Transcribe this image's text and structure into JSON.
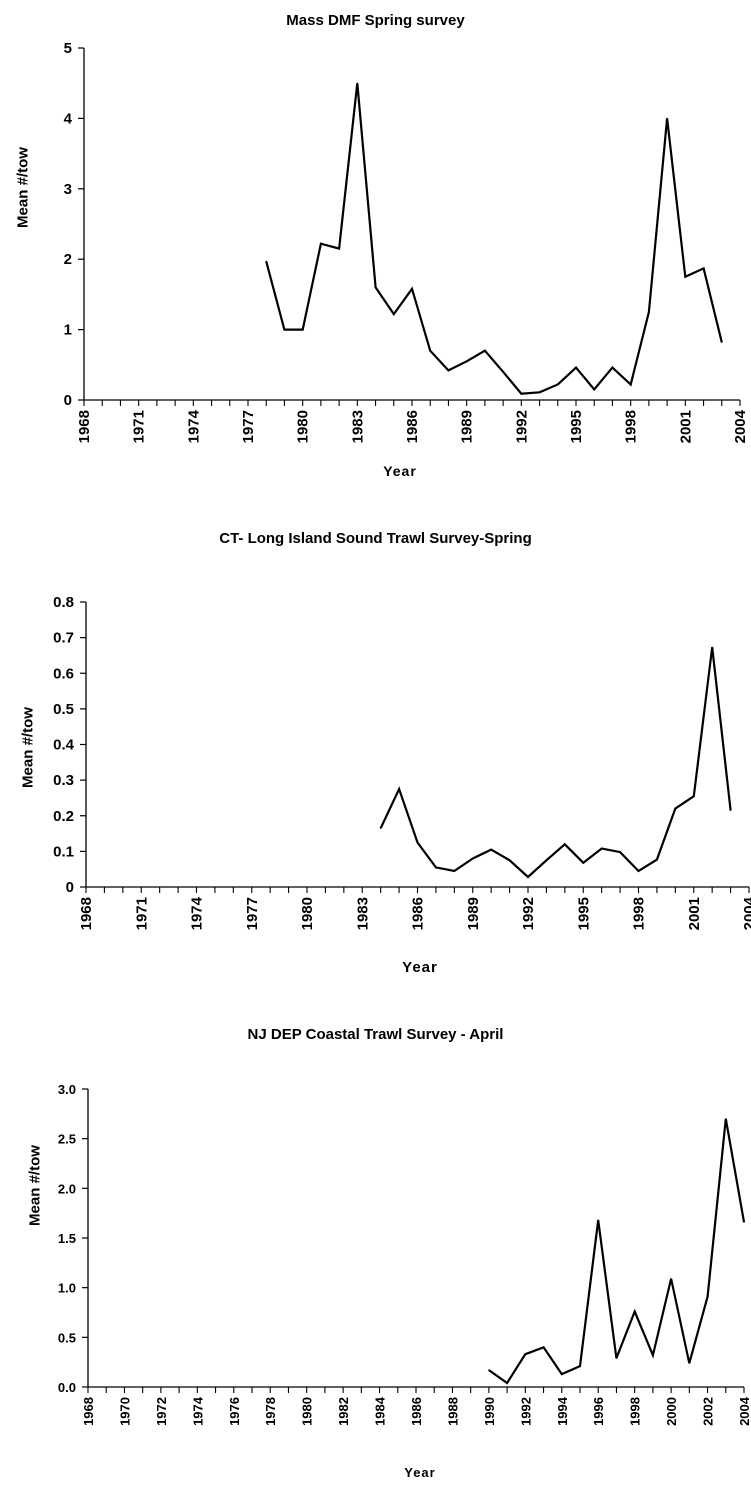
{
  "chart_data": [
    {
      "type": "line",
      "title": "Mass DMF Spring survey",
      "xlabel": "Year",
      "ylabel": "Mean #/tow",
      "ylim": [
        0,
        5
      ],
      "yticks": [
        "0",
        "1",
        "2",
        "3",
        "4",
        "5"
      ],
      "xlim": [
        1968,
        2004
      ],
      "xticks": [
        "1968",
        "1971",
        "1974",
        "1977",
        "1980",
        "1983",
        "1986",
        "1989",
        "1992",
        "1995",
        "1998",
        "2001",
        "2004"
      ],
      "grid": false,
      "legend": "none",
      "series": [
        {
          "x": [
            1978,
            1979,
            1980,
            1981,
            1982,
            1983,
            1984,
            1985,
            1986,
            1987,
            1988,
            1989,
            1990,
            1991,
            1992,
            1993,
            1994,
            1995,
            1996,
            1997,
            1998,
            1999,
            2000,
            2001,
            2002,
            2003
          ],
          "values": [
            1.97,
            1.0,
            1.0,
            2.22,
            2.15,
            4.5,
            1.6,
            1.22,
            1.58,
            0.7,
            0.42,
            0.55,
            0.7,
            0.4,
            0.09,
            0.11,
            0.22,
            0.46,
            0.15,
            0.46,
            0.22,
            1.25,
            4.0,
            1.75,
            1.87,
            0.82
          ]
        }
      ]
    },
    {
      "type": "line",
      "title": "CT- Long Island Sound Trawl Survey-Spring",
      "xlabel": "Year",
      "ylabel": "Mean #/tow",
      "ylim": [
        0,
        0.8
      ],
      "yticks": [
        "0",
        "0.1",
        "0.2",
        "0.3",
        "0.4",
        "0.5",
        "0.6",
        "0.7",
        "0.8"
      ],
      "xlim": [
        1968,
        2004
      ],
      "xticks": [
        "1968",
        "1971",
        "1974",
        "1977",
        "1980",
        "1983",
        "1986",
        "1989",
        "1992",
        "1995",
        "1998",
        "2001",
        "2004"
      ],
      "grid": false,
      "legend": "none",
      "series": [
        {
          "x": [
            1984,
            1985,
            1986,
            1987,
            1988,
            1989,
            1990,
            1991,
            1992,
            1993,
            1994,
            1995,
            1996,
            1997,
            1998,
            1999,
            2000,
            2001,
            2002,
            2003
          ],
          "values": [
            0.165,
            0.275,
            0.125,
            0.055,
            0.045,
            0.08,
            0.105,
            0.075,
            0.028,
            0.075,
            0.12,
            0.068,
            0.108,
            0.098,
            0.045,
            0.077,
            0.22,
            0.255,
            0.673,
            0.215
          ]
        }
      ]
    },
    {
      "type": "line",
      "title": "NJ DEP Coastal Trawl Survey - April",
      "xlabel": "Year",
      "ylabel": "Mean #/tow",
      "ylim": [
        0,
        3.0
      ],
      "yticks": [
        "0.0",
        "0.5",
        "1.0",
        "1.5",
        "2.0",
        "2.5",
        "3.0"
      ],
      "xlim": [
        1968,
        2004
      ],
      "xticks": [
        "1968",
        "1970",
        "1972",
        "1974",
        "1976",
        "1978",
        "1980",
        "1982",
        "1984",
        "1986",
        "1988",
        "1990",
        "1992",
        "1994",
        "1996",
        "1998",
        "2000",
        "2002",
        "2004"
      ],
      "grid": false,
      "legend": "none",
      "series": [
        {
          "x": [
            1990,
            1991,
            1992,
            1993,
            1994,
            1995,
            1996,
            1997,
            1998,
            1999,
            2000,
            2001,
            2002,
            2003,
            2004
          ],
          "values": [
            0.17,
            0.04,
            0.33,
            0.4,
            0.13,
            0.21,
            1.68,
            0.29,
            0.76,
            0.32,
            1.09,
            0.24,
            0.91,
            2.7,
            1.66
          ]
        }
      ]
    }
  ]
}
